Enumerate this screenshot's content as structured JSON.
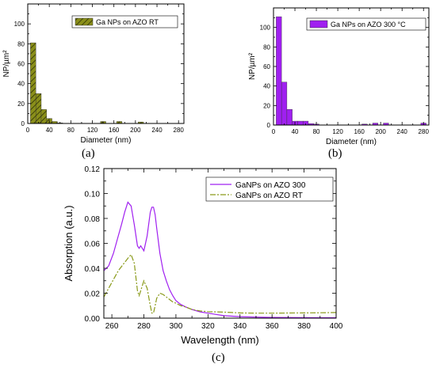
{
  "chart_data": [
    {
      "id": "a",
      "type": "bar",
      "panel_label": "(a)",
      "bin_width": 10,
      "x": [
        10,
        20,
        30,
        40,
        50,
        60,
        140,
        170,
        210
      ],
      "values": [
        81,
        30,
        14,
        5,
        2,
        0.5,
        2,
        2,
        1.5
      ],
      "xlabel": "Diameter (nm)",
      "ylabel": "NP/µm²",
      "xlim": [
        0,
        290
      ],
      "ylim": [
        0,
        120
      ],
      "xticks": [
        "0",
        "40",
        "80",
        "120",
        "160",
        "200",
        "240",
        "280"
      ],
      "yticks": [
        "0",
        "20",
        "40",
        "60",
        "80",
        "100"
      ],
      "legend": "Ga NPs on AZO RT",
      "legend_position": "top-right",
      "color": "#8a8f1a",
      "pattern": "hatched",
      "grid": false
    },
    {
      "id": "b",
      "type": "bar",
      "panel_label": "(b)",
      "bin_width": 10,
      "x": [
        10,
        20,
        30,
        40,
        50,
        60,
        70,
        80,
        170,
        190,
        210,
        280
      ],
      "values": [
        111,
        44,
        16,
        4,
        4,
        4,
        1.5,
        1,
        1,
        2,
        2,
        2
      ],
      "xlabel": "Diameter (nm)",
      "ylabel": "NP/µm²",
      "xlim": [
        0,
        290
      ],
      "ylim": [
        0,
        120
      ],
      "xticks": [
        "0",
        "40",
        "80",
        "120",
        "160",
        "200",
        "240",
        "280"
      ],
      "yticks": [
        "0",
        "20",
        "40",
        "60",
        "80",
        "100"
      ],
      "legend": "Ga NPs on AZO 300 °C",
      "legend_position": "top-right",
      "color": "#a020f0",
      "grid": false
    },
    {
      "id": "c",
      "type": "line",
      "panel_label": "(c)",
      "xlabel": "Wavelength (nm)",
      "ylabel": "Absorption (a.u.)",
      "xlim": [
        255,
        400
      ],
      "ylim": [
        0,
        0.12
      ],
      "xticks": [
        "260",
        "280",
        "300",
        "320",
        "340",
        "360",
        "380",
        "400"
      ],
      "yticks": [
        "0.00",
        "0.02",
        "0.04",
        "0.06",
        "0.08",
        "0.10",
        "0.12"
      ],
      "legend_position": "top-right",
      "grid": false,
      "series": [
        {
          "name": "GaNPs on AZO 300",
          "color": "#a020f0",
          "style": "solid",
          "x": [
            255,
            258,
            261,
            264,
            266,
            268,
            270,
            272,
            274,
            276,
            277,
            278,
            280,
            282,
            284,
            285,
            286,
            287,
            288,
            290,
            292,
            294,
            296,
            298,
            300,
            303,
            306,
            310,
            315,
            320,
            325,
            330,
            340,
            350,
            360,
            370,
            380,
            390,
            400
          ],
          "y": [
            0.038,
            0.042,
            0.052,
            0.066,
            0.075,
            0.085,
            0.093,
            0.09,
            0.075,
            0.058,
            0.056,
            0.058,
            0.054,
            0.066,
            0.085,
            0.089,
            0.089,
            0.083,
            0.072,
            0.052,
            0.038,
            0.03,
            0.023,
            0.018,
            0.014,
            0.011,
            0.009,
            0.007,
            0.005,
            0.004,
            0.003,
            0.002,
            0.0012,
            0.0008,
            0.0006,
            0.0005,
            0.0004,
            0.0003,
            0.0003
          ]
        },
        {
          "name": "GaNPs on AZO RT",
          "color": "#8a9a1a",
          "style": "dashdot",
          "x": [
            255,
            258,
            261,
            264,
            267,
            270,
            272,
            274,
            276,
            277,
            278,
            280,
            282,
            284,
            285,
            286,
            287,
            288,
            290,
            292,
            294,
            296,
            298,
            300,
            303,
            306,
            310,
            315,
            320,
            325,
            330,
            335,
            340,
            350,
            360,
            370,
            380,
            390,
            400
          ],
          "y": [
            0.017,
            0.024,
            0.031,
            0.038,
            0.043,
            0.048,
            0.051,
            0.044,
            0.022,
            0.018,
            0.022,
            0.03,
            0.024,
            0.01,
            0.004,
            0.004,
            0.01,
            0.016,
            0.02,
            0.019,
            0.017,
            0.015,
            0.013,
            0.012,
            0.01,
            0.009,
            0.007,
            0.0058,
            0.0052,
            0.005,
            0.0048,
            0.0045,
            0.0042,
            0.004,
            0.004,
            0.0041,
            0.0042,
            0.0043,
            0.0045
          ]
        }
      ]
    }
  ]
}
